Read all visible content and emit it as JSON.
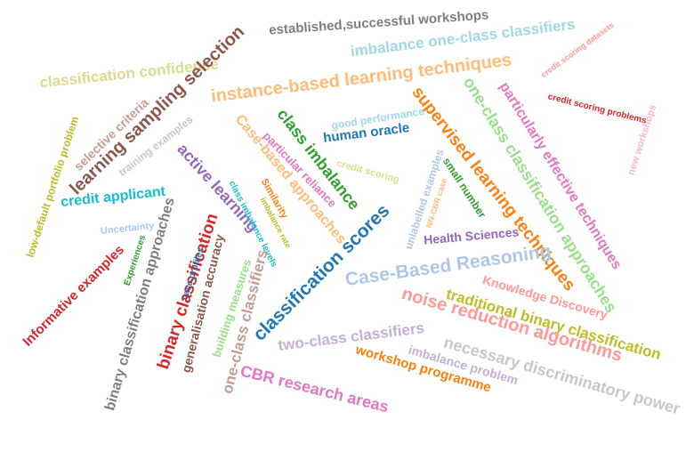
{
  "words": [
    {
      "text": "established,successful workshops",
      "color": "#7f7f7f"
    },
    {
      "text": "imbalance one-class classifiers",
      "color": "#9edae5"
    },
    {
      "text": "classification confidence",
      "color": "#dbdb8d"
    },
    {
      "text": "instance-based learning techniques",
      "color": "#ffbb78"
    },
    {
      "text": "learning sampling selection",
      "color": "#8c564b"
    },
    {
      "text": "selective criteria",
      "color": "#c49c94"
    },
    {
      "text": "training examples",
      "color": "#c7c7c7"
    },
    {
      "text": "credit scoring datasets",
      "color": "#ff9896"
    },
    {
      "text": "credit scoring problems",
      "color": "#d62728"
    },
    {
      "text": "new workshops",
      "color": "#f7b6d2"
    },
    {
      "text": "particularly effective techniques",
      "color": "#e377c2"
    },
    {
      "text": "one-class classification approaches",
      "color": "#98df8a"
    },
    {
      "text": "supervised learning techniques",
      "color": "#ff7f0e"
    },
    {
      "text": "low-default portfolio problem",
      "color": "#bcbd22"
    },
    {
      "text": "class imbalance",
      "color": "#2ca02c"
    },
    {
      "text": "good performance",
      "color": "#9edae5"
    },
    {
      "text": "human oracle",
      "color": "#1f77b4"
    },
    {
      "text": "particular reliance",
      "color": "#e377c2"
    },
    {
      "text": "Case-based approaches",
      "color": "#ffbb78"
    },
    {
      "text": "credit scoring",
      "color": "#dbdb8d"
    },
    {
      "text": "active learning",
      "color": "#9467bd"
    },
    {
      "text": "Similarity",
      "color": "#ff7f0e"
    },
    {
      "text": "credit applicant",
      "color": "#17becf"
    },
    {
      "text": "class imbalance levels",
      "color": "#17becf"
    },
    {
      "text": "imbalance rate",
      "color": "#bcbd22"
    },
    {
      "text": "unlabelled examples",
      "color": "#aec7e8"
    },
    {
      "text": "small number",
      "color": "#2ca02c"
    },
    {
      "text": "NN-CBR case",
      "color": "#ffbb78"
    },
    {
      "text": "classification scores",
      "color": "#1f77b4"
    },
    {
      "text": "Uncertainty",
      "color": "#aec7e8"
    },
    {
      "text": "Health Sciences",
      "color": "#9467bd"
    },
    {
      "text": "binary classification approaches",
      "color": "#7f7f7f"
    },
    {
      "text": "Experiences",
      "color": "#2ca02c"
    },
    {
      "text": "binary classification",
      "color": "#d62728"
    },
    {
      "text": "Case-Based Reasoning",
      "color": "#aec7e8"
    },
    {
      "text": "case profiles",
      "color": "#1f77b4"
    },
    {
      "text": "generalisation accuracy",
      "color": "#8c564b"
    },
    {
      "text": "building measures",
      "color": "#98df8a"
    },
    {
      "text": "one-class classifiers",
      "color": "#c49c94"
    },
    {
      "text": "Knowledge Discovery",
      "color": "#ff9896"
    },
    {
      "text": "Informative examples",
      "color": "#d62728"
    },
    {
      "text": "traditional binary classification",
      "color": "#bcbd22"
    },
    {
      "text": "noise reduction algorithms",
      "color": "#ff9896"
    },
    {
      "text": "two-class classifiers",
      "color": "#c5b0d5"
    },
    {
      "text": "necessary discriminatory power",
      "color": "#c7c7c7"
    },
    {
      "text": "imbalance problem",
      "color": "#c5b0d5"
    },
    {
      "text": "workshop programme",
      "color": "#ff7f0e"
    },
    {
      "text": "CBR research areas",
      "color": "#e377c2"
    }
  ]
}
